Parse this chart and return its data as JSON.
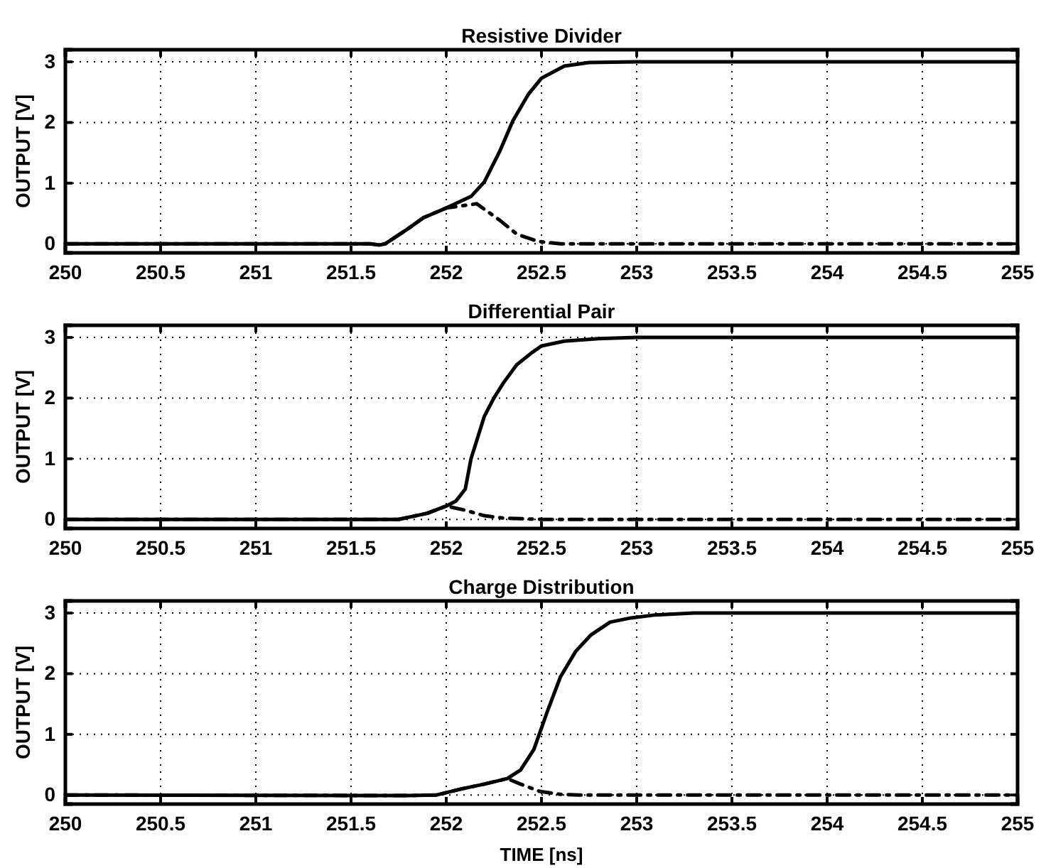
{
  "chart_data": [
    {
      "type": "line",
      "title": "Resistive Divider",
      "ylabel": "OUTPUT [V]",
      "xlim": [
        250,
        255
      ],
      "ylim": [
        -0.15,
        3.2
      ],
      "xticks": [
        250,
        250.5,
        251,
        251.5,
        252,
        252.5,
        253,
        253.5,
        254,
        254.5,
        255
      ],
      "yticks": [
        0,
        1,
        2,
        3
      ],
      "grid": true,
      "series": [
        {
          "color": "#000000",
          "line_style": "solid",
          "x": [
            250,
            251.6,
            251.65,
            251.68,
            251.8,
            251.88,
            252,
            252.13,
            252.2,
            252.28,
            252.35,
            252.43,
            252.5,
            252.62,
            252.75,
            253,
            255
          ],
          "values": [
            0,
            0,
            -0.02,
            0,
            0.25,
            0.43,
            0.59,
            0.78,
            1.02,
            1.52,
            2.03,
            2.46,
            2.73,
            2.93,
            2.99,
            3,
            3
          ]
        },
        {
          "color": "#000000",
          "line_style": "dashed",
          "x": [
            250,
            251.6,
            251.65,
            251.68,
            251.8,
            251.88,
            252,
            252.16,
            252.28,
            252.37,
            252.48,
            252.6,
            255
          ],
          "values": [
            0,
            0,
            -0.02,
            0,
            0.25,
            0.43,
            0.59,
            0.66,
            0.39,
            0.16,
            0.04,
            0,
            0
          ]
        }
      ]
    },
    {
      "type": "line",
      "title": "Differential Pair",
      "ylabel": "OUTPUT [V]",
      "xlim": [
        250,
        255
      ],
      "ylim": [
        -0.15,
        3.2
      ],
      "xticks": [
        250,
        250.5,
        251,
        251.5,
        252,
        252.5,
        253,
        253.5,
        254,
        254.5,
        255
      ],
      "yticks": [
        0,
        1,
        2,
        3
      ],
      "grid": true,
      "series": [
        {
          "color": "#000000",
          "line_style": "solid",
          "x": [
            250,
            251.75,
            251.9,
            252,
            252.05,
            252.1,
            252.13,
            252.17,
            252.2,
            252.25,
            252.3,
            252.37,
            252.45,
            252.5,
            252.62,
            252.8,
            253,
            255
          ],
          "values": [
            0,
            0,
            0.1,
            0.22,
            0.3,
            0.5,
            1.0,
            1.4,
            1.7,
            2.0,
            2.25,
            2.55,
            2.75,
            2.86,
            2.94,
            2.98,
            3,
            3
          ]
        },
        {
          "color": "#000000",
          "line_style": "dashed",
          "x": [
            250,
            251.75,
            251.9,
            252,
            252.1,
            252.2,
            252.3,
            252.5,
            255
          ],
          "values": [
            0,
            0,
            0.1,
            0.22,
            0.15,
            0.06,
            0.02,
            0,
            0
          ]
        }
      ]
    },
    {
      "type": "line",
      "title": "Charge Distribution",
      "xlabel": "TIME [ns]",
      "ylabel": "OUTPUT [V]",
      "xlim": [
        250,
        255
      ],
      "ylim": [
        -0.15,
        3.2
      ],
      "xticks": [
        250,
        250.5,
        251,
        251.5,
        252,
        252.5,
        253,
        253.5,
        254,
        254.5,
        255
      ],
      "yticks": [
        0,
        1,
        2,
        3
      ],
      "grid": true,
      "series": [
        {
          "color": "#000000",
          "line_style": "solid",
          "x": [
            250,
            251.8,
            251.95,
            252.08,
            252.2,
            252.32,
            252.39,
            252.46,
            252.53,
            252.6,
            252.68,
            252.76,
            252.86,
            252.97,
            253.1,
            253.3,
            255
          ],
          "values": [
            0,
            -0.01,
            0,
            0.1,
            0.18,
            0.27,
            0.41,
            0.75,
            1.37,
            1.95,
            2.37,
            2.64,
            2.85,
            2.92,
            2.97,
            3,
            3
          ]
        },
        {
          "color": "#000000",
          "line_style": "dashed",
          "x": [
            250,
            251.8,
            251.95,
            252.08,
            252.2,
            252.32,
            252.39,
            252.49,
            252.6,
            252.7,
            255
          ],
          "values": [
            0,
            -0.01,
            0,
            0.1,
            0.18,
            0.27,
            0.18,
            0.06,
            0.01,
            0,
            0
          ]
        }
      ]
    }
  ]
}
